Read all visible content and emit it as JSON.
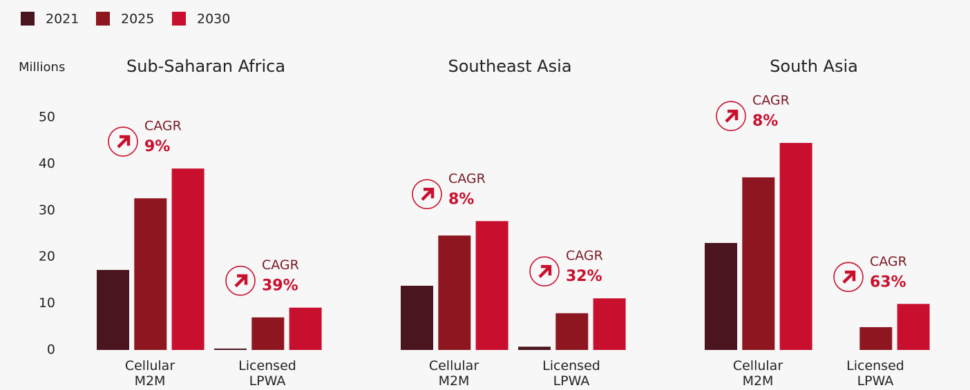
{
  "chart_data": {
    "type": "bar",
    "y_label": "Millions",
    "ylim": [
      0,
      50
    ],
    "yticks": [
      0,
      10,
      20,
      30,
      40,
      50
    ],
    "groups": [
      "Sub-Saharan Africa",
      "Southeast Asia",
      "South Asia"
    ],
    "categories": [
      "Cellular M2M",
      "Licensed LPWA",
      "Cellular M2M",
      "Licensed LPWA",
      "Cellular M2M",
      "Licensed LPWA"
    ],
    "series": [
      {
        "name": "2021",
        "color": "#4a151e",
        "values": [
          17.2,
          0.3,
          13.8,
          0.7,
          23.0,
          null
        ]
      },
      {
        "name": "2025",
        "color": "#8e1620",
        "values": [
          32.6,
          7.0,
          24.6,
          7.9,
          37.1,
          4.9
        ]
      },
      {
        "name": "2030",
        "color": "#c8102e",
        "values": [
          39.0,
          9.1,
          27.7,
          11.1,
          44.5,
          9.9
        ]
      }
    ],
    "cagr_label": "CAGR",
    "cagr": [
      "9%",
      "39%",
      "8%",
      "32%",
      "8%",
      "63%"
    ]
  }
}
